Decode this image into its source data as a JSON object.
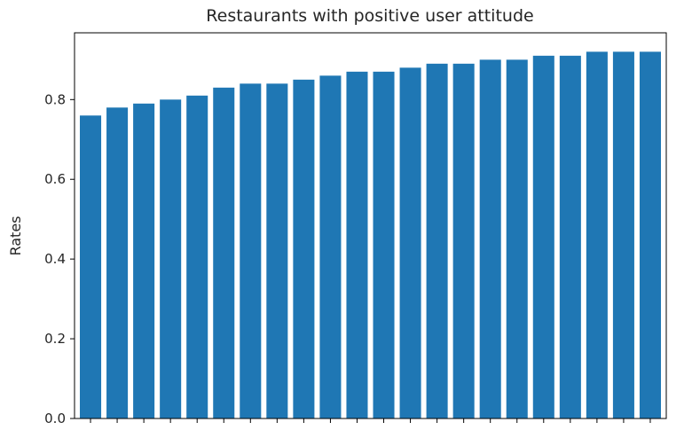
{
  "chart_data": {
    "type": "bar",
    "title": "Restaurants with positive user attitude",
    "xlabel": "",
    "ylabel": "Rates",
    "ylim": [
      0,
      0.9675
    ],
    "yticks": [
      "0.0",
      "0.2",
      "0.4",
      "0.6",
      "0.8"
    ],
    "values": [
      0.76,
      0.78,
      0.79,
      0.8,
      0.81,
      0.83,
      0.84,
      0.84,
      0.85,
      0.86,
      0.87,
      0.87,
      0.88,
      0.89,
      0.89,
      0.9,
      0.9,
      0.91,
      0.91,
      0.92,
      0.92,
      0.92
    ],
    "bar_color": "#1f77b4",
    "grid": false,
    "legend": "none"
  }
}
